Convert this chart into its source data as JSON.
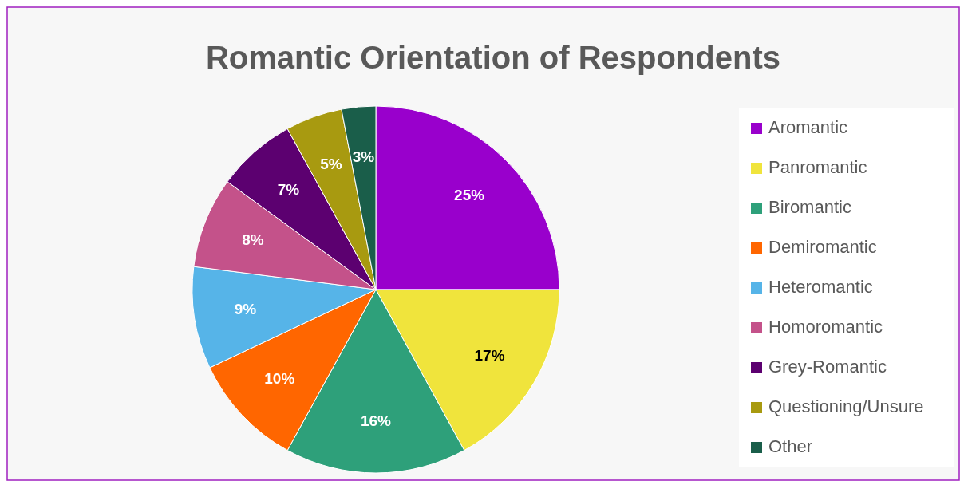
{
  "chart_data": {
    "type": "pie",
    "title": "Romantic Orientation of Respondents",
    "categories": [
      "Aromantic",
      "Panromantic",
      "Biromantic",
      "Demiromantic",
      "Heteromantic",
      "Homoromantic",
      "Grey-Romantic",
      "Questioning/Unsure",
      "Other"
    ],
    "values": [
      25,
      17,
      16,
      10,
      9,
      8,
      7,
      5,
      3
    ],
    "value_labels": [
      "25%",
      "17%",
      "16%",
      "10%",
      "9%",
      "8%",
      "7%",
      "5%",
      "3%"
    ],
    "colors": [
      "#9900cc",
      "#f0e43c",
      "#2ea07a",
      "#ff6600",
      "#56b4e8",
      "#c4528a",
      "#5c0070",
      "#a89a10",
      "#1a5e4a"
    ],
    "legend": "right"
  }
}
